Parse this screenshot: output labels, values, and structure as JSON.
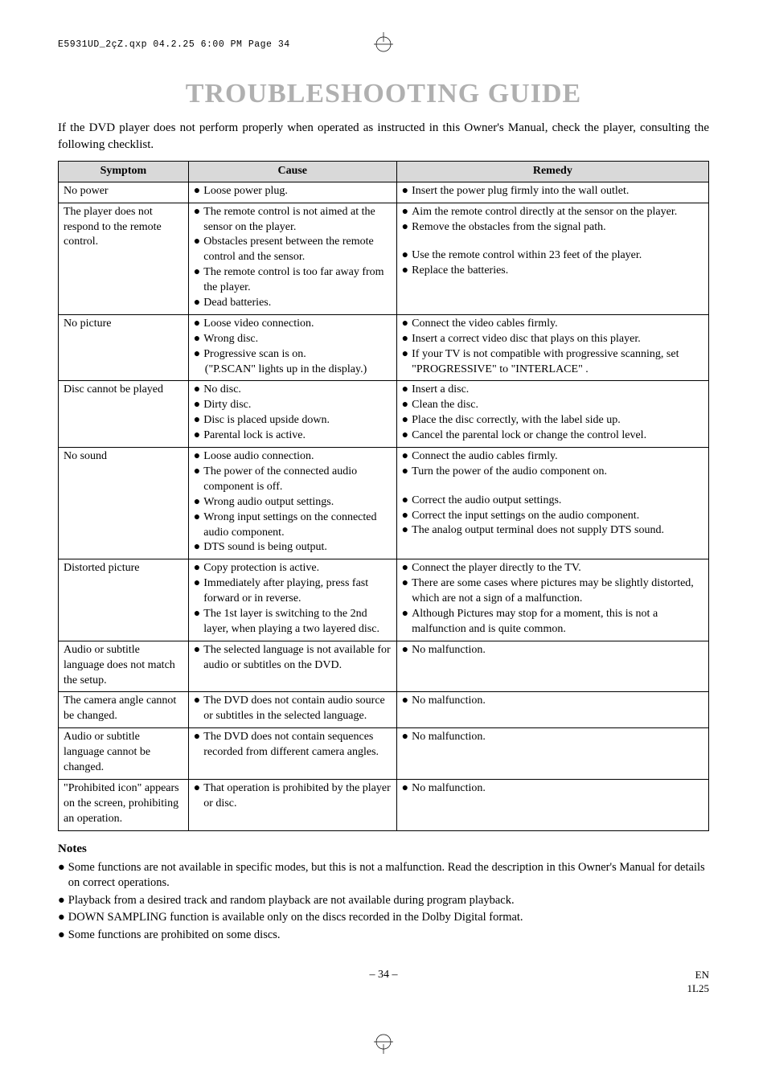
{
  "header_note": "E5931UD_2çZ.qxp  04.2.25  6:00 PM  Page 34",
  "title": "TROUBLESHOOTING GUIDE",
  "intro": "If the DVD player does not perform properly when operated as instructed in this Owner's Manual, check the player, consulting the following checklist.",
  "columns": {
    "symptom": "Symptom",
    "cause": "Cause",
    "remedy": "Remedy"
  },
  "rows": [
    {
      "symptom": "No power",
      "cause": [
        "Loose power plug."
      ],
      "remedy": [
        "Insert the power plug firmly into the wall outlet."
      ]
    },
    {
      "symptom": "The player does not respond to the remote control.",
      "cause": [
        "The remote control is not aimed at the sensor on the player.",
        "Obstacles present between the remote control and the sensor.",
        "The remote control is too far away from the player.",
        "Dead batteries."
      ],
      "remedy": [
        "Aim the remote control directly at the sensor on the player.",
        "Remove the obstacles from the signal path.",
        "",
        "Use the remote control within 23 feet of the player.",
        "Replace the batteries."
      ]
    },
    {
      "symptom": "No picture",
      "cause": [
        "Loose video connection.",
        "Wrong disc.",
        "Progressive scan is on.",
        "_indent:(\"P.SCAN\" lights up in the display.)"
      ],
      "remedy": [
        "Connect the video cables firmly.",
        "Insert a correct video disc that plays on this player.",
        "If your TV is not compatible with progressive scanning, set \"PROGRESSIVE\" to \"INTERLACE\" ."
      ]
    },
    {
      "symptom": "Disc cannot be played",
      "cause": [
        "No disc.",
        "Dirty disc.",
        "Disc is placed upside down.",
        "Parental lock is active."
      ],
      "remedy": [
        "Insert a disc.",
        "Clean the disc.",
        "Place the disc correctly, with the label side up.",
        "Cancel the parental lock or change the control level."
      ]
    },
    {
      "symptom": "No sound",
      "cause": [
        "Loose audio connection.",
        "The power of the connected audio component is off.",
        "Wrong audio output settings.",
        "Wrong input settings on the connected audio component.",
        "DTS sound is being output."
      ],
      "remedy": [
        "Connect the audio cables firmly.",
        "Turn the power of the audio component on.",
        "",
        "Correct the audio output settings.",
        "Correct the input settings on the audio component.",
        "The analog output terminal does not supply DTS sound."
      ]
    },
    {
      "symptom": "Distorted picture",
      "cause": [
        "Copy protection is active.",
        "Immediately after playing, press fast forward or in reverse.",
        "The 1st layer is switching to the 2nd layer, when playing a two layered disc."
      ],
      "remedy": [
        "Connect the player directly to the TV.",
        "There are some cases where pictures may be slightly distorted, which are not a sign of a malfunction.",
        "Although Pictures may stop for a moment, this is not a malfunction and is quite common."
      ]
    },
    {
      "symptom": "Audio or subtitle language does not match the setup.",
      "cause": [
        "The selected language is not available for audio or subtitles on the DVD."
      ],
      "remedy": [
        "No malfunction."
      ]
    },
    {
      "symptom": "The camera angle cannot be changed.",
      "cause": [
        "The DVD does not contain audio source or subtitles in the selected language."
      ],
      "remedy": [
        "No malfunction."
      ]
    },
    {
      "symptom": "Audio or subtitle language cannot be changed.",
      "cause": [
        "The DVD does not contain sequences recorded from different camera angles."
      ],
      "remedy": [
        "No malfunction."
      ]
    },
    {
      "symptom": "\"Prohibited icon\" appears on the screen, prohibiting an operation.",
      "cause": [
        "That operation is prohibited by the player or disc."
      ],
      "remedy": [
        "No malfunction."
      ]
    }
  ],
  "notes_heading": "Notes",
  "notes": [
    "Some functions are not available in specific modes, but this is not a malfunction. Read the description in this Owner's Manual for details on correct operations.",
    "Playback from a desired track and random playback are not available during program playback.",
    "DOWN SAMPLING function is available only on the discs recorded in the Dolby Digital format.",
    "Some functions are prohibited on some discs."
  ],
  "page_number": "– 34 –",
  "footer_code_top": "EN",
  "footer_code_bottom": "1L25"
}
